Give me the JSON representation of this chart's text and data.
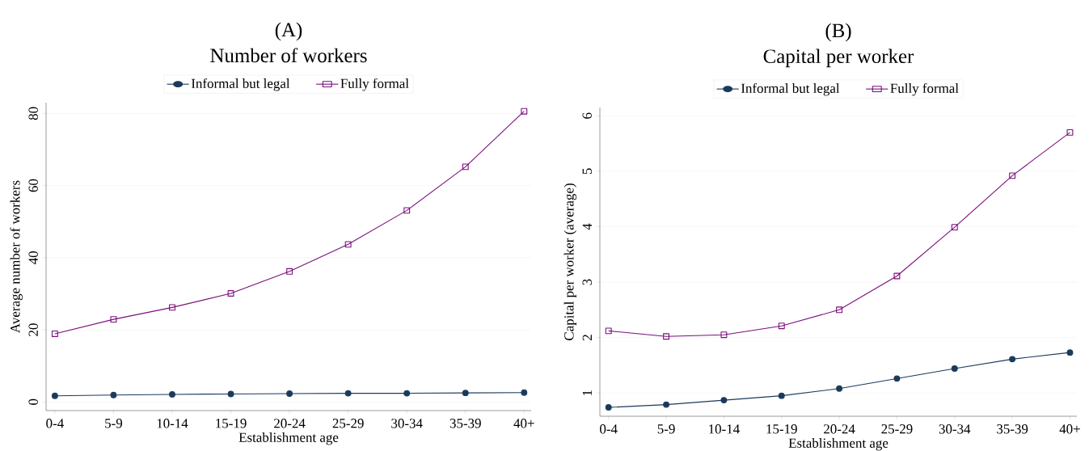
{
  "chart_data": [
    {
      "type": "line",
      "title": "(A)",
      "subtitle": "Number of workers",
      "xlabel": "Establishment age",
      "ylabel": "Average number of workers",
      "categories": [
        "0-4",
        "5-9",
        "10-14",
        "15-19",
        "20-24",
        "25-29",
        "30-34",
        "35-39",
        "40+"
      ],
      "series": [
        {
          "name": "Informal but legal",
          "color": "#1a3a5c",
          "marker": "circle",
          "values": [
            1.7,
            1.9,
            2.1,
            2.2,
            2.3,
            2.4,
            2.4,
            2.5,
            2.6
          ]
        },
        {
          "name": "Fully formal",
          "color": "#7b0f7b",
          "marker": "square",
          "values": [
            18.9,
            22.9,
            26.2,
            30.1,
            36.2,
            43.7,
            53.1,
            65.2,
            80.6
          ]
        }
      ],
      "ylim": [
        -2.4,
        83
      ],
      "yticks": [
        0,
        20,
        40,
        60,
        80
      ],
      "grid": "y",
      "legend": "top",
      "line_style": "solid"
    },
    {
      "type": "line",
      "title": "(B)",
      "subtitle": "Capital per worker",
      "xlabel": "Establishment age",
      "ylabel": "Capital per worker (average)",
      "categories": [
        "0-4",
        "5-9",
        "10-14",
        "15-19",
        "20-24",
        "25-29",
        "30-34",
        "35-39",
        "40+"
      ],
      "series": [
        {
          "name": "Informal but legal",
          "color": "#1a3a5c",
          "marker": "circle",
          "values": [
            0.74,
            0.79,
            0.87,
            0.95,
            1.08,
            1.26,
            1.44,
            1.61,
            1.73
          ]
        },
        {
          "name": "Fully formal",
          "color": "#7b0f7b",
          "marker": "square",
          "values": [
            2.12,
            2.02,
            2.05,
            2.21,
            2.5,
            3.11,
            3.99,
            4.92,
            5.7
          ]
        }
      ],
      "ylim": [
        0.58,
        6.15
      ],
      "yticks": [
        1,
        2,
        3,
        4,
        5,
        6
      ],
      "grid": "y",
      "legend": "top",
      "line_style": "solid"
    }
  ]
}
